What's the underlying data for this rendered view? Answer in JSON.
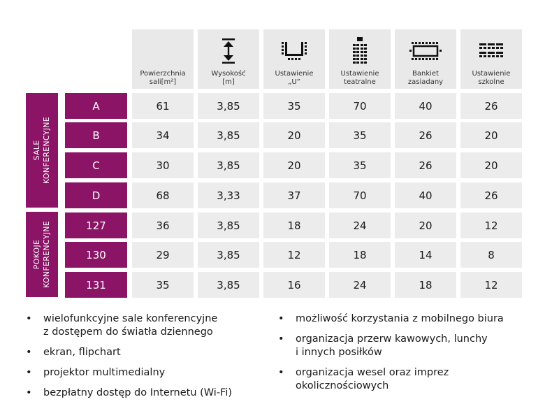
{
  "columns": [
    {
      "label": "Powierzchnia\nsali[m²]",
      "icon": "none"
    },
    {
      "label": "Wysokość\n[m]",
      "icon": "height-arrow-icon"
    },
    {
      "label": "Ustawienie\n„U”",
      "icon": "u-shape-icon"
    },
    {
      "label": "Ustawienie\nteatralne",
      "icon": "theatre-layout-icon"
    },
    {
      "label": "Bankiet\nzasiadany",
      "icon": "banquet-table-icon"
    },
    {
      "label": "Ustawienie\nszkolne",
      "icon": "school-layout-icon"
    }
  ],
  "groups": [
    {
      "label": "SALE\nKONFERENCYJNE"
    },
    {
      "label": "POKOJE\nKONFERENCYJNE"
    }
  ],
  "rows": [
    {
      "name": "A",
      "values": [
        "61",
        "3,85",
        "35",
        "70",
        "40",
        "26"
      ]
    },
    {
      "name": "B",
      "values": [
        "34",
        "3,85",
        "20",
        "35",
        "26",
        "20"
      ]
    },
    {
      "name": "C",
      "values": [
        "30",
        "3,85",
        "20",
        "35",
        "26",
        "20"
      ]
    },
    {
      "name": "D",
      "values": [
        "68",
        "3,33",
        "37",
        "70",
        "40",
        "26"
      ]
    },
    {
      "name": "127",
      "values": [
        "36",
        "3,85",
        "18",
        "24",
        "20",
        "12"
      ]
    },
    {
      "name": "130",
      "values": [
        "29",
        "3,85",
        "12",
        "18",
        "14",
        "8"
      ]
    },
    {
      "name": "131",
      "values": [
        "35",
        "3,85",
        "16",
        "24",
        "18",
        "12"
      ]
    }
  ],
  "features_left": [
    "wielofunkcyjne sale konferencyjne\nz dostępem do światła dziennego",
    "ekran, flipchart",
    "projektor multimedialny",
    "bezpłatny dostęp do Internetu (Wi-Fi)"
  ],
  "features_right": [
    "możliwość korzystania z mobilnego biura",
    "organizacja przerw kawowych, lunchy\ni innych posiłków",
    "organizacja wesel oraz imprez\nokolicznościowych"
  ],
  "colors": {
    "accent": "#8b1466",
    "cell_bg": "#ececec",
    "header_bg": "#e9e9e9"
  }
}
